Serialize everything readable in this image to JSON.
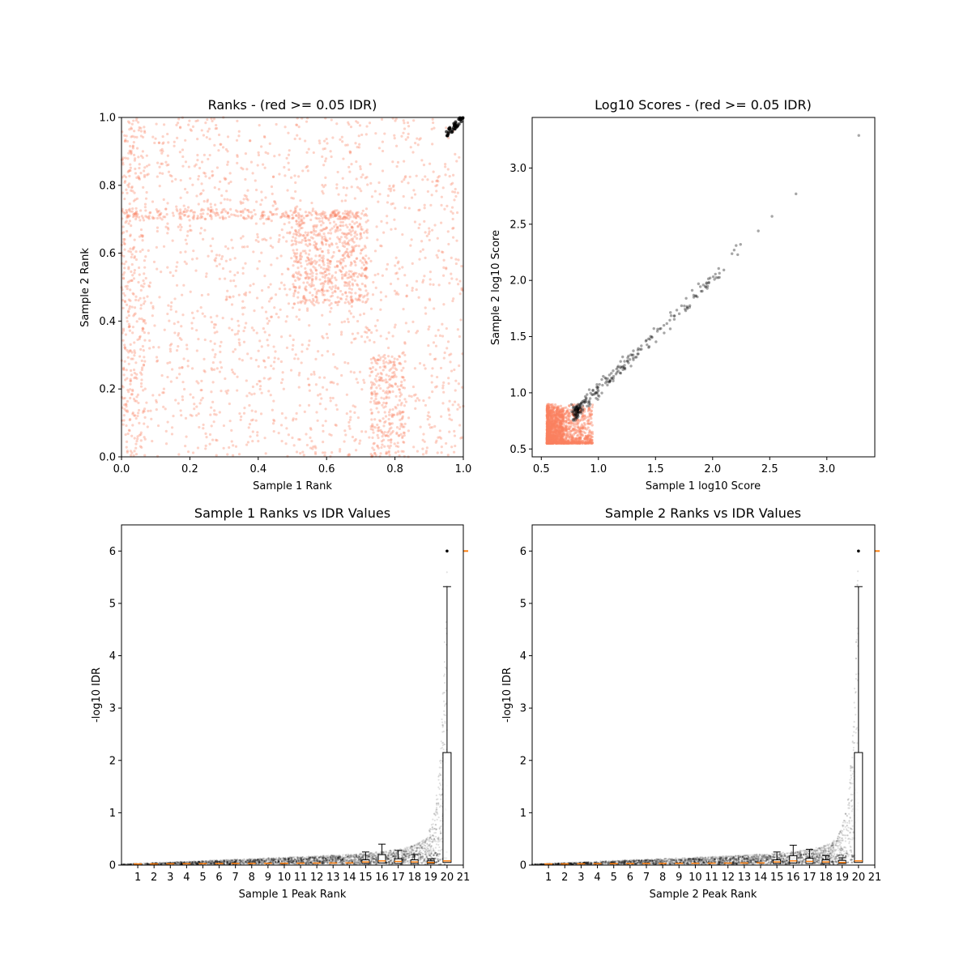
{
  "colors": {
    "pass": "#000000",
    "fail": "#fa8060",
    "median": "#ff7f0e",
    "box": "#000000"
  },
  "chart_data": [
    {
      "type": "scatter",
      "title": "Ranks - (red >= 0.05 IDR)",
      "xlabel": "Sample 1 Rank",
      "ylabel": "Sample 2 Rank",
      "xlim": [
        0,
        1
      ],
      "ylim": [
        0,
        1
      ],
      "xticks": [
        "0.0",
        "0.2",
        "0.4",
        "0.6",
        "0.8",
        "1.0"
      ],
      "yticks": [
        "0.0",
        "0.2",
        "0.4",
        "0.6",
        "0.8",
        "1.0"
      ],
      "grid": false,
      "series": [
        {
          "color": "#fa8060",
          "approx_points": 3000,
          "x_range": [
            0,
            1
          ],
          "y_range": [
            0,
            1
          ]
        },
        {
          "color": "#000000",
          "approx_points": 40,
          "x_range": [
            0.95,
            1.0
          ],
          "y_range": [
            0.95,
            1.0
          ]
        }
      ]
    },
    {
      "type": "scatter",
      "title": "Log10 Scores - (red >= 0.05 IDR)",
      "xlabel": "Sample 1 log10 Score",
      "ylabel": "Sample 2 log10 Score",
      "xlim": [
        0.42,
        3.42
      ],
      "ylim": [
        0.43,
        3.45
      ],
      "xticks": [
        "0.5",
        "1.0",
        "1.5",
        "2.0",
        "2.5",
        "3.0"
      ],
      "yticks": [
        "0.5",
        "1.0",
        "1.5",
        "2.0",
        "2.5",
        "3.0"
      ],
      "grid": false,
      "series": [
        {
          "color": "#fa8060",
          "approx_points": 1500,
          "x_range": [
            0.55,
            0.95
          ],
          "y_range": [
            0.55,
            0.95
          ]
        },
        {
          "color": "#000000",
          "approx_points": 260,
          "x_range": [
            0.8,
            3.3
          ],
          "y_range": [
            0.78,
            3.3
          ],
          "max_point": [
            3.28,
            3.29
          ]
        }
      ]
    },
    {
      "type": "box",
      "title": "Sample 1 Ranks vs IDR Values",
      "xlabel": "Sample 1 Peak Rank",
      "ylabel": "-log10 IDR",
      "xlim": [
        0,
        21
      ],
      "ylim": [
        0,
        6.5
      ],
      "xticks": [
        "1",
        "2",
        "3",
        "4",
        "5",
        "6",
        "7",
        "8",
        "9",
        "10",
        "11",
        "12",
        "13",
        "14",
        "15",
        "16",
        "17",
        "18",
        "19",
        "20",
        "21"
      ],
      "yticks": [
        "0",
        "1",
        "2",
        "3",
        "4",
        "5",
        "6"
      ],
      "grid": false,
      "bins": [
        {
          "pos": 15,
          "q1": 0.03,
          "median": 0.06,
          "q3": 0.1,
          "whisker_high": 0.25
        },
        {
          "pos": 16,
          "q1": 0.04,
          "median": 0.08,
          "q3": 0.2,
          "whisker_high": 0.4
        },
        {
          "pos": 17,
          "q1": 0.03,
          "median": 0.07,
          "q3": 0.12,
          "whisker_high": 0.28
        },
        {
          "pos": 18,
          "q1": 0.03,
          "median": 0.06,
          "q3": 0.1,
          "whisker_high": 0.2
        },
        {
          "pos": 19,
          "q1": 0.03,
          "median": 0.05,
          "q3": 0.08,
          "whisker_high": 0.12
        },
        {
          "pos": 20,
          "q1": 0.05,
          "median": 0.08,
          "q3": 2.15,
          "whisker_high": 5.32
        }
      ],
      "max_value": 6.0
    },
    {
      "type": "box",
      "title": "Sample 2 Ranks vs IDR Values",
      "xlabel": "Sample 2 Peak Rank",
      "ylabel": "-log10 IDR",
      "xlim": [
        0,
        21
      ],
      "ylim": [
        0,
        6.5
      ],
      "xticks": [
        "1",
        "2",
        "3",
        "4",
        "5",
        "6",
        "7",
        "8",
        "9",
        "10",
        "11",
        "12",
        "13",
        "14",
        "15",
        "16",
        "17",
        "18",
        "19",
        "20",
        "21"
      ],
      "yticks": [
        "0",
        "1",
        "2",
        "3",
        "4",
        "5",
        "6"
      ],
      "grid": false,
      "bins": [
        {
          "pos": 15,
          "q1": 0.03,
          "median": 0.06,
          "q3": 0.1,
          "whisker_high": 0.25
        },
        {
          "pos": 16,
          "q1": 0.04,
          "median": 0.08,
          "q3": 0.18,
          "whisker_high": 0.38
        },
        {
          "pos": 17,
          "q1": 0.03,
          "median": 0.07,
          "q3": 0.13,
          "whisker_high": 0.3
        },
        {
          "pos": 18,
          "q1": 0.03,
          "median": 0.06,
          "q3": 0.1,
          "whisker_high": 0.18
        },
        {
          "pos": 19,
          "q1": 0.03,
          "median": 0.05,
          "q3": 0.09,
          "whisker_high": 0.14
        },
        {
          "pos": 20,
          "q1": 0.05,
          "median": 0.08,
          "q3": 2.15,
          "whisker_high": 5.32
        }
      ],
      "max_value": 6.0
    }
  ]
}
